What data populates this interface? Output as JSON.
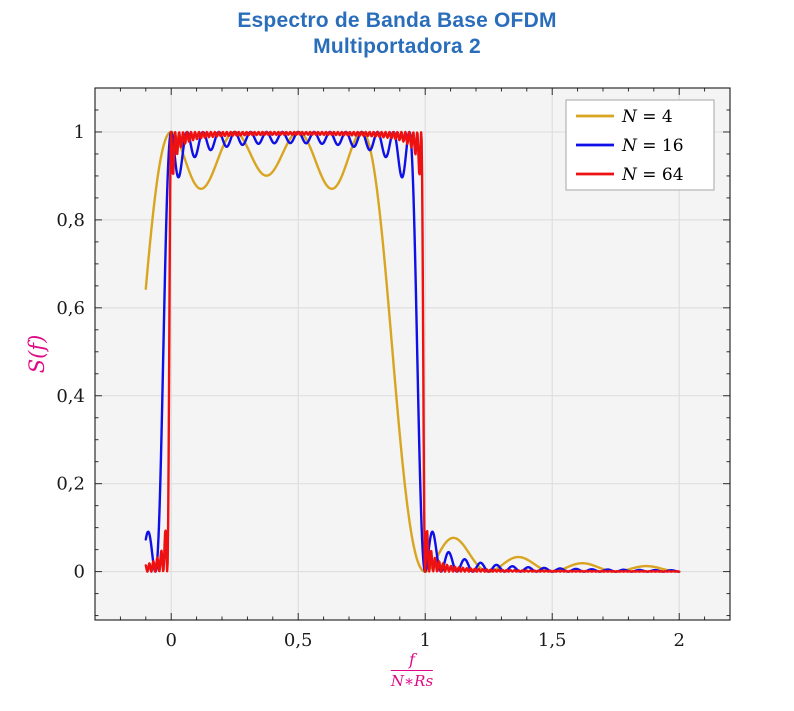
{
  "title": {
    "line1": "Espectro de Banda Base OFDM",
    "line2": "Multiportadora 2",
    "color": "#2A6EBB"
  },
  "chart_data": {
    "type": "line",
    "title": "Espectro de Banda Base OFDM — Multiportadora 2",
    "ylabel": "S(f)",
    "xlabel_numerator": "f",
    "xlabel_denominator": "N∗Rs",
    "axis_label_color": "#DD0C86",
    "xlim": [
      -0.3,
      2.2
    ],
    "ylim": [
      -0.11,
      1.1
    ],
    "x_minor_step": 0.1,
    "y_minor_step": 0.05,
    "grid": "major",
    "plot_background": "#F4F4F4",
    "grid_color": "#DBDBDB",
    "axis_color": "#1A1A1A",
    "xticks": [
      {
        "v": 0,
        "label": "0"
      },
      {
        "v": 0.5,
        "label": "0,5"
      },
      {
        "v": 1,
        "label": "1"
      },
      {
        "v": 1.5,
        "label": "1,5"
      },
      {
        "v": 2,
        "label": "2"
      }
    ],
    "yticks": [
      {
        "v": 0,
        "label": "0"
      },
      {
        "v": 0.2,
        "label": "0,2"
      },
      {
        "v": 0.4,
        "label": "0,4"
      },
      {
        "v": 0.6,
        "label": "0,6"
      },
      {
        "v": 0.8,
        "label": "0,8"
      },
      {
        "v": 1,
        "label": "1"
      }
    ],
    "sample_step": 0.002,
    "model": "S_N(x) = sum_{k=0}^{N-1} sinc^2(N*x - k), sinc(u) = sin(pi*u)/(pi*u), x = f/(N*Rs)",
    "series": [
      {
        "name": "N = 4",
        "N": 4,
        "color": "#D9A521",
        "x_range": [
          -0.1,
          2
        ],
        "anchor_points": [
          [
            -0.1,
            0.64
          ],
          [
            0,
            1
          ],
          [
            0.125,
            0.87
          ],
          [
            0.25,
            1
          ],
          [
            0.375,
            0.87
          ],
          [
            0.5,
            1
          ],
          [
            0.625,
            0.87
          ],
          [
            0.75,
            1
          ],
          [
            0.875,
            0.48
          ],
          [
            1,
            0
          ],
          [
            1.11,
            0.08
          ],
          [
            1.25,
            0
          ],
          [
            1.36,
            0.06
          ],
          [
            1.5,
            0
          ],
          [
            1.61,
            0.05
          ],
          [
            1.75,
            0
          ],
          [
            1.86,
            0.04
          ],
          [
            2,
            0
          ]
        ]
      },
      {
        "name": "N = 16",
        "N": 16,
        "color": "#0F0FE8",
        "x_range": [
          -0.1,
          2
        ],
        "anchor_points": [
          [
            -0.1,
            0.07
          ],
          [
            -0.031,
            0.5
          ],
          [
            0,
            1
          ],
          [
            0.25,
            0.96
          ],
          [
            0.5,
            0.96
          ],
          [
            0.75,
            0.96
          ],
          [
            0.969,
            0.5
          ],
          [
            1,
            0
          ],
          [
            1.027,
            0.07
          ],
          [
            1.09,
            0.05
          ],
          [
            1.2,
            0.03
          ],
          [
            1.5,
            0.01
          ],
          [
            2,
            0.005
          ]
        ]
      },
      {
        "name": "N = 64",
        "N": 64,
        "color": "#EE1111",
        "x_range": [
          -0.1,
          2
        ],
        "anchor_points": [
          [
            -0.1,
            0.015
          ],
          [
            -0.008,
            0.5
          ],
          [
            0,
            1
          ],
          [
            0.5,
            0.99
          ],
          [
            0.992,
            0.5
          ],
          [
            1,
            0
          ],
          [
            1.007,
            0.05
          ],
          [
            1.05,
            0.02
          ],
          [
            1.5,
            0.004
          ],
          [
            2,
            0.002
          ]
        ]
      }
    ],
    "legend": {
      "position": "top-right",
      "border_color": "#A6A6A6",
      "background": "#FFFFFF",
      "entries": [
        {
          "label": "N = 4",
          "label_italic": "N",
          "label_rest": " = 4",
          "color": "#D9A521"
        },
        {
          "label": "N = 16",
          "label_italic": "N",
          "label_rest": " = 16",
          "color": "#0F0FE8"
        },
        {
          "label": "N = 64",
          "label_italic": "N",
          "label_rest": " = 64",
          "color": "#EE1111"
        }
      ]
    }
  }
}
